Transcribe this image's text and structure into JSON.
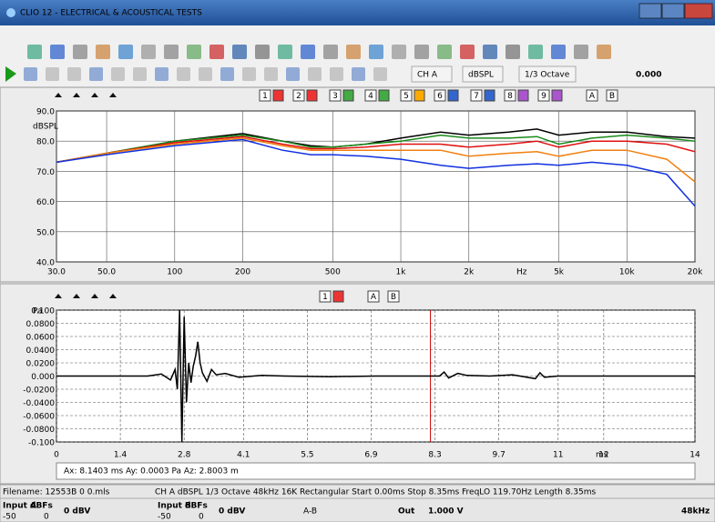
{
  "window": {
    "title": "CLIO 12 - ELECTRICAL & ACOUSTICAL TESTS"
  },
  "toolbar": {
    "channel": "CH A",
    "unit": "dBSPL",
    "smoothing": "1/3 Octave",
    "value": "0.000"
  },
  "freq_panel": {
    "buttons": [
      "1",
      "2",
      "3",
      "4",
      "5",
      "6",
      "7",
      "8",
      "9",
      "A",
      "B"
    ]
  },
  "time_panel": {
    "buttons": [
      "1",
      "A",
      "B"
    ],
    "cursor_readout": "Ax: 8.1403 ms  Ay: 0.0003 Pa  Az: 2.8003 m"
  },
  "status": {
    "filename": "Filename: 12553B 0 0.mls",
    "settings": "CH A  dBSPL  1/3 Octave  48kHz  16K  Rectangular  Start 0.00ms  Stop 8.35ms  FreqLO 119.70Hz  Length 8.35ms"
  },
  "bottom_bar": {
    "input_a": {
      "label": "Input A",
      "unit": "dBFs",
      "min": "-50",
      "max": "0",
      "level": "0 dBV"
    },
    "input_b": {
      "label": "Input B",
      "unit": "dBFs",
      "min": "-50",
      "max": "0",
      "level": "0 dBV"
    },
    "ab": "A-B",
    "out": "Out",
    "out_level": "1.000 V",
    "rate": "48kHz"
  },
  "chart_data": [
    {
      "type": "line",
      "y_label": "dBSPL",
      "x_unit": "Hz",
      "x_log": true,
      "grid": true,
      "grid_style": "solid",
      "x": [
        30,
        50,
        100,
        200,
        300,
        400,
        500,
        700,
        1000,
        1500,
        2000,
        3000,
        4000,
        5000,
        7000,
        10000,
        15000,
        20000
      ],
      "series": [
        {
          "color": "#000000",
          "values": [
            73,
            76,
            80,
            82.5,
            80,
            78.5,
            78,
            79,
            81,
            83,
            82,
            83,
            84,
            82,
            83,
            83,
            81.5,
            81
          ]
        },
        {
          "color": "#1a8a1a",
          "values": [
            73,
            76,
            80,
            82,
            80,
            78,
            78,
            79,
            80,
            82,
            81,
            81,
            81.5,
            79,
            81,
            82,
            81,
            80
          ]
        },
        {
          "color": "#e01010",
          "values": [
            73,
            76,
            79.5,
            81.5,
            79,
            77.5,
            77.5,
            78,
            79,
            79,
            78,
            79,
            80,
            78,
            80,
            80,
            79,
            76.5
          ]
        },
        {
          "color": "#f08010",
          "values": [
            73,
            76,
            79,
            81,
            78.5,
            77,
            77,
            77,
            77,
            77,
            75,
            76,
            76.5,
            75,
            77,
            77,
            74,
            66.5
          ]
        },
        {
          "color": "#1030e0",
          "values": [
            73,
            75.5,
            78.5,
            80.5,
            77,
            75.5,
            75.5,
            75,
            74,
            72,
            71,
            72,
            72.5,
            72,
            73,
            72,
            69,
            58.5
          ]
        }
      ],
      "xlim": [
        30,
        20000
      ],
      "ylim": [
        40,
        90
      ],
      "xticks": [
        {
          "value": 30,
          "label": "30.0"
        },
        {
          "value": 50,
          "label": "50.0"
        },
        100,
        200,
        500,
        {
          "value": 1000,
          "label": "1k"
        },
        {
          "value": 2000,
          "label": "2k"
        },
        {
          "value": 5000,
          "label": "5k"
        },
        {
          "value": 10000,
          "label": "10k"
        },
        {
          "value": 20000,
          "label": "20k"
        }
      ],
      "yticks": [
        {
          "value": 40,
          "label": "40.0"
        },
        {
          "value": 50,
          "label": "50.0"
        },
        {
          "value": 60,
          "label": "60.0"
        },
        {
          "value": 70,
          "label": "70.0"
        },
        {
          "value": 80,
          "label": "80.0"
        },
        {
          "value": 90,
          "label": "90.0"
        }
      ]
    },
    {
      "type": "line",
      "y_label": "Pa",
      "x_unit": "ms",
      "x_log": false,
      "grid": true,
      "grid_style": "dashed",
      "cursor_x": 8.2,
      "x": [
        0,
        2.0,
        2.3,
        2.5,
        2.6,
        2.65,
        2.7,
        2.75,
        2.8,
        2.85,
        2.9,
        2.95,
        3.0,
        3.05,
        3.1,
        3.15,
        3.2,
        3.3,
        3.4,
        3.5,
        3.7,
        4.0,
        4.5,
        5,
        6,
        7,
        8,
        8.4,
        8.5,
        8.6,
        8.8,
        9,
        9.5,
        10,
        10.5,
        10.6,
        10.7,
        11,
        12,
        14
      ],
      "series": [
        {
          "color": "#000000",
          "values": [
            0,
            0,
            0.003,
            -0.006,
            0.01,
            -0.02,
            0.1,
            -0.1,
            0.09,
            -0.04,
            0.02,
            -0.01,
            0.015,
            0.03,
            0.052,
            0.02,
            0.005,
            -0.008,
            0.01,
            0.002,
            0.004,
            -0.002,
            0.001,
            0,
            -0.001,
            0,
            0,
            0,
            0.006,
            -0.003,
            0.004,
            0.001,
            0,
            0.002,
            -0.004,
            0.005,
            -0.002,
            0,
            0,
            0
          ]
        }
      ],
      "xlim": [
        0,
        14
      ],
      "ylim": [
        -0.1,
        0.1
      ],
      "xticks": [
        0,
        1.4,
        2.8,
        4.1,
        5.5,
        6.9,
        8.3,
        9.7,
        11,
        12,
        14
      ],
      "yticks": [
        {
          "value": -0.1,
          "label": "-0.100"
        },
        {
          "value": -0.08,
          "label": "-0.0800"
        },
        {
          "value": -0.06,
          "label": "-0.0600"
        },
        {
          "value": -0.04,
          "label": "-0.0400"
        },
        {
          "value": -0.02,
          "label": "-0.0200"
        },
        {
          "value": 0,
          "label": "0.000"
        },
        {
          "value": 0.02,
          "label": "0.0200"
        },
        {
          "value": 0.04,
          "label": "0.0400"
        },
        {
          "value": 0.06,
          "label": "0.0600"
        },
        {
          "value": 0.08,
          "label": "0.0800"
        },
        {
          "value": 0.1,
          "label": "0.100"
        }
      ]
    }
  ]
}
